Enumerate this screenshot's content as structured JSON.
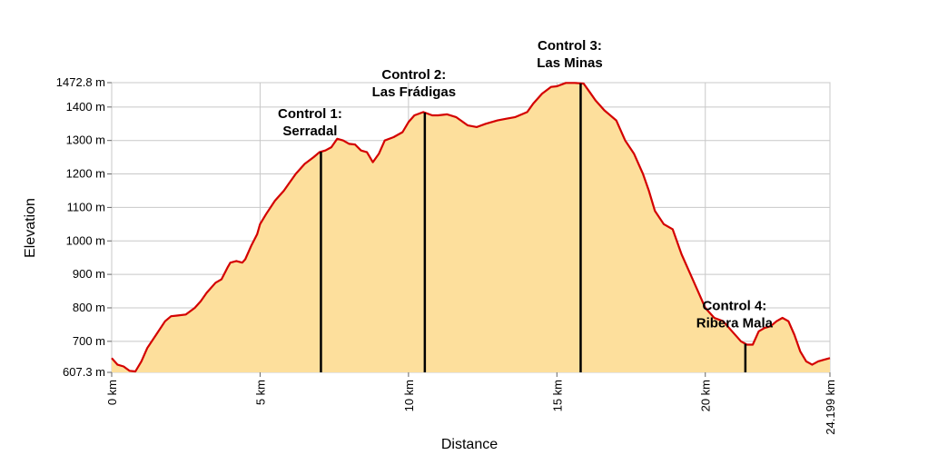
{
  "chart_data": {
    "type": "area",
    "xlabel": "Distance",
    "ylabel": "Elevation",
    "xlim": [
      0,
      24.199
    ],
    "ylim": [
      607.3,
      1472.8
    ],
    "x_ticks": [
      {
        "value": 0,
        "label": "0 km"
      },
      {
        "value": 5,
        "label": "5 km"
      },
      {
        "value": 10,
        "label": "10 km"
      },
      {
        "value": 15,
        "label": "15 km"
      },
      {
        "value": 20,
        "label": "20 km"
      },
      {
        "value": 24.199,
        "label": "24.199 km"
      }
    ],
    "y_ticks": [
      {
        "value": 607.3,
        "label": "607.3 m"
      },
      {
        "value": 700,
        "label": "700 m"
      },
      {
        "value": 800,
        "label": "800 m"
      },
      {
        "value": 900,
        "label": "900 m"
      },
      {
        "value": 1000,
        "label": "1000 m"
      },
      {
        "value": 1100,
        "label": "1100 m"
      },
      {
        "value": 1200,
        "label": "1200 m"
      },
      {
        "value": 1300,
        "label": "1300 m"
      },
      {
        "value": 1400,
        "label": "1400 m"
      },
      {
        "value": 1472.8,
        "label": "1472.8 m"
      }
    ],
    "grid": true,
    "colors": {
      "line": "#d40000",
      "fill": "#fddf9c",
      "marker": "#000000",
      "grid": "#c8c8c8"
    },
    "series": [
      {
        "x": [
          0,
          0.2,
          0.4,
          0.6,
          0.8,
          1.0,
          1.2,
          1.5,
          1.8,
          2.0,
          2.2,
          2.5,
          2.8,
          3.0,
          3.2,
          3.5,
          3.7,
          3.9,
          4.0,
          4.2,
          4.4,
          4.5,
          4.7,
          4.9,
          5.0,
          5.2,
          5.5,
          5.8,
          6.0,
          6.2,
          6.5,
          6.8,
          7.0,
          7.2,
          7.4,
          7.6,
          7.8,
          8.0,
          8.2,
          8.4,
          8.6,
          8.8,
          9.0,
          9.2,
          9.5,
          9.8,
          10.0,
          10.2,
          10.5,
          10.8,
          11.0,
          11.3,
          11.6,
          12.0,
          12.3,
          12.6,
          13.0,
          13.3,
          13.6,
          14.0,
          14.2,
          14.5,
          14.8,
          15.0,
          15.3,
          15.6,
          15.9,
          16.1,
          16.3,
          16.6,
          17.0,
          17.3,
          17.6,
          17.9,
          18.1,
          18.3,
          18.6,
          18.9,
          19.2,
          19.5,
          19.8,
          20.0,
          20.3,
          20.6,
          20.9,
          21.2,
          21.4,
          21.6,
          21.8,
          22.0,
          22.2,
          22.4,
          22.6,
          22.8,
          23.0,
          23.2,
          23.4,
          23.6,
          23.8,
          24.0,
          24.199
        ],
        "y": [
          650,
          630,
          625,
          612,
          610,
          640,
          680,
          720,
          760,
          775,
          777,
          780,
          800,
          820,
          845,
          875,
          885,
          920,
          935,
          940,
          935,
          945,
          985,
          1020,
          1050,
          1080,
          1120,
          1150,
          1175,
          1200,
          1230,
          1250,
          1265,
          1270,
          1280,
          1305,
          1300,
          1290,
          1288,
          1270,
          1265,
          1235,
          1260,
          1300,
          1310,
          1325,
          1355,
          1375,
          1385,
          1375,
          1375,
          1378,
          1370,
          1345,
          1340,
          1350,
          1360,
          1365,
          1370,
          1385,
          1410,
          1440,
          1460,
          1462,
          1472,
          1472,
          1470,
          1445,
          1420,
          1390,
          1360,
          1300,
          1260,
          1200,
          1150,
          1090,
          1050,
          1035,
          960,
          900,
          840,
          800,
          770,
          760,
          730,
          700,
          690,
          690,
          730,
          740,
          745,
          760,
          770,
          760,
          720,
          670,
          640,
          630,
          640,
          645,
          650
        ]
      }
    ],
    "annotations": [
      {
        "x": 7.05,
        "lines": [
          "Control 1:",
          "Serradal"
        ]
      },
      {
        "x": 10.55,
        "lines": [
          "Control 2:",
          "Las Frádigas"
        ]
      },
      {
        "x": 15.8,
        "lines": [
          "Control 3:",
          "Las Minas"
        ]
      },
      {
        "x": 21.35,
        "lines": [
          "Control 4:",
          "Ribera Mala"
        ]
      }
    ]
  }
}
